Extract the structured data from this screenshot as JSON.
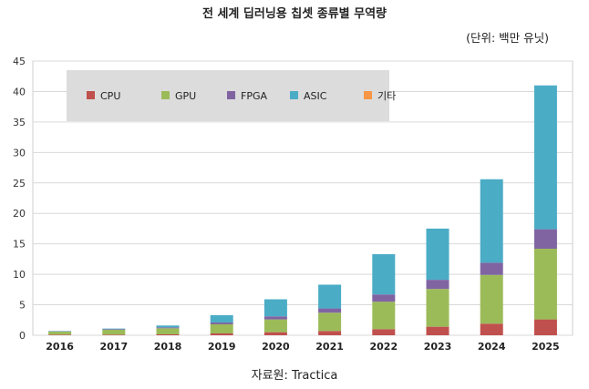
{
  "chart_data": {
    "type": "bar",
    "stacked": true,
    "title": "전 세계 딥러닝용 칩셋 종류별 무역량",
    "unit_label": "(단위: 백만 유닛)",
    "source": "자료원: Tractica",
    "xlabel": "",
    "ylabel": "",
    "ylim": [
      0,
      45
    ],
    "yticks": [
      0,
      5,
      10,
      15,
      20,
      25,
      30,
      35,
      40,
      45
    ],
    "grid": true,
    "legend_position": "top-left",
    "categories": [
      "2016",
      "2017",
      "2018",
      "2019",
      "2020",
      "2021",
      "2022",
      "2023",
      "2024",
      "2025"
    ],
    "series": [
      {
        "name": "CPU",
        "color": "#c0504d",
        "values": [
          0.1,
          0.1,
          0.15,
          0.3,
          0.5,
          0.7,
          1.0,
          1.4,
          1.9,
          2.6
        ]
      },
      {
        "name": "GPU",
        "color": "#9bbb59",
        "values": [
          0.5,
          0.8,
          1.0,
          1.5,
          2.1,
          3.0,
          4.5,
          6.2,
          8.0,
          11.6
        ]
      },
      {
        "name": "FPGA",
        "color": "#8064a2",
        "values": [
          0.05,
          0.1,
          0.15,
          0.3,
          0.5,
          0.7,
          1.2,
          1.5,
          2.0,
          3.2
        ]
      },
      {
        "name": "ASIC",
        "color": "#4bacc6",
        "values": [
          0.05,
          0.1,
          0.3,
          1.2,
          2.8,
          3.9,
          6.6,
          8.4,
          13.7,
          23.6
        ]
      },
      {
        "name": "기타",
        "color": "#f79646",
        "values": [
          0,
          0,
          0,
          0,
          0,
          0,
          0,
          0,
          0,
          0
        ]
      }
    ]
  }
}
